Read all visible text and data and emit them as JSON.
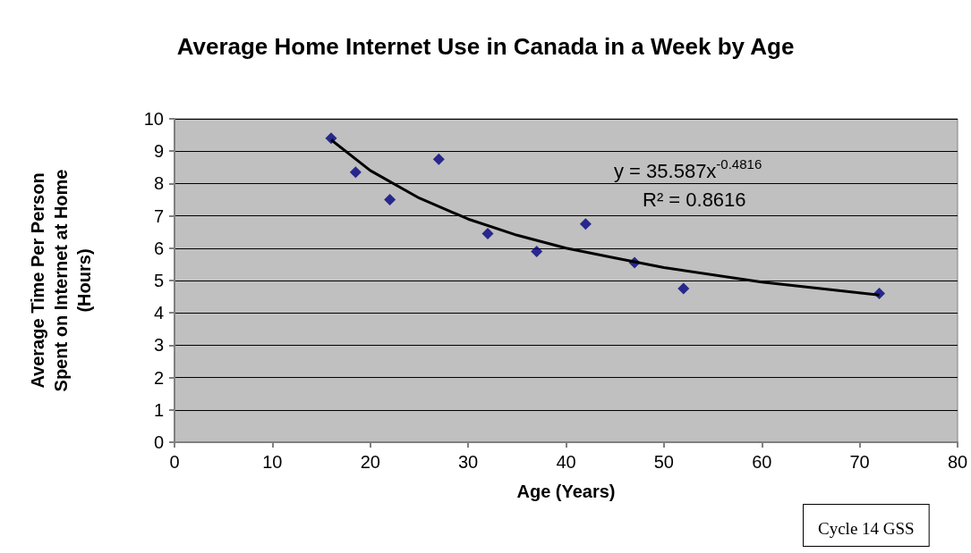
{
  "chart_data": {
    "type": "scatter",
    "title": "Average Home Internet Use in Canada in a Week by Age",
    "xlabel": "Age (Years)",
    "ylabel": "Average Time Per Person\nSpent on Internet at Home\n(Hours)",
    "xlim": [
      0,
      80
    ],
    "xticks": [
      0,
      10,
      20,
      30,
      40,
      50,
      60,
      70,
      80
    ],
    "ylim": [
      0,
      10
    ],
    "yticks": [
      0,
      1,
      2,
      3,
      4,
      5,
      6,
      7,
      8,
      9,
      10
    ],
    "grid": "y",
    "marker": "diamond",
    "annotations": [
      "y = 35.587x$^{-0.4816}$",
      "R² = 0.8616",
      "Cycle 14 GSS"
    ],
    "series": [
      {
        "color": "#000080",
        "x": [
          16,
          18.5,
          22,
          27,
          32,
          37,
          42,
          47,
          52,
          72
        ],
        "values": [
          9.4,
          8.35,
          7.5,
          8.75,
          6.45,
          5.9,
          6.75,
          5.55,
          4.75,
          4.6
        ]
      },
      {
        "type": "line",
        "color": "#000000",
        "marker": "none",
        "x": [
          16,
          20,
          25,
          30,
          35,
          40,
          45,
          50,
          60,
          72
        ],
        "values": [
          9.35,
          8.4,
          7.55,
          6.9,
          6.4,
          6,
          5.7,
          5.4,
          4.95,
          4.55
        ]
      }
    ]
  }
}
